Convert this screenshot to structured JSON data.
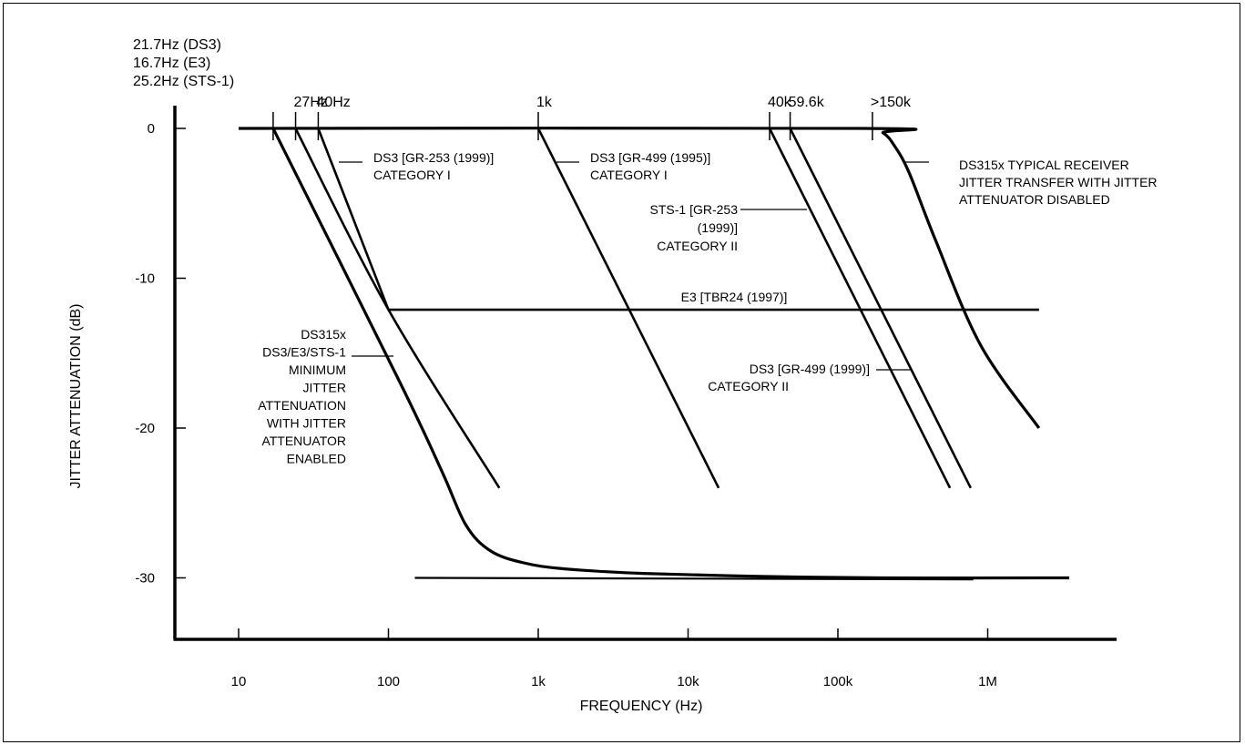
{
  "chart_data": {
    "type": "line",
    "title": "",
    "xlabel": "FREQUENCY (Hz)",
    "ylabel": "JITTER ATTENUATION (dB)",
    "x_scale": "log",
    "xlim": [
      5,
      6000000
    ],
    "ylim": [
      -34,
      2
    ],
    "x_ticks": [
      {
        "value": 10,
        "label": "10"
      },
      {
        "value": 100,
        "label": "100"
      },
      {
        "value": 1000,
        "label": "1k"
      },
      {
        "value": 10000,
        "label": "10k"
      },
      {
        "value": 100000,
        "label": "100k"
      },
      {
        "value": 1000000,
        "label": "1M"
      }
    ],
    "y_ticks": [
      {
        "value": 0,
        "label": "0"
      },
      {
        "value": -10,
        "label": "-10"
      },
      {
        "value": -20,
        "label": "-20"
      },
      {
        "value": -30,
        "label": "-30"
      }
    ],
    "grid": false,
    "series": [
      {
        "points": [
          [
            10,
            0
          ],
          [
            150000,
            0
          ],
          [
            200000,
            -0.3
          ],
          [
            240000,
            -1.2
          ],
          [
            300000,
            -3
          ],
          [
            450000,
            -7.5
          ],
          [
            900000,
            -14.5
          ],
          [
            2200000,
            -20
          ]
        ]
      },
      {
        "points": [
          [
            17,
            0
          ],
          [
            120,
            -17
          ],
          [
            230,
            -23
          ],
          [
            330,
            -26.5
          ],
          [
            480,
            -28.2
          ],
          [
            800,
            -29
          ],
          [
            1500,
            -29.4
          ],
          [
            5000,
            -29.7
          ],
          [
            30000,
            -29.9
          ],
          [
            200000,
            -30
          ],
          [
            3500000,
            -30
          ]
        ]
      },
      {
        "points": [
          [
            150,
            -30
          ],
          [
            800000,
            -30.1
          ]
        ]
      },
      {
        "points": [
          [
            24,
            0
          ],
          [
            100,
            -12.1
          ],
          [
            550,
            -24
          ]
        ]
      },
      {
        "points": [
          [
            34,
            0
          ],
          [
            100,
            -12.1
          ]
        ]
      },
      {
        "points": [
          [
            100,
            -12.1
          ],
          [
            2200000,
            -12.1
          ]
        ]
      },
      {
        "points": [
          [
            1000,
            0
          ],
          [
            16000,
            -24
          ]
        ]
      },
      {
        "points": [
          [
            35000,
            0
          ],
          [
            560000,
            -24
          ]
        ]
      },
      {
        "points": [
          [
            48000,
            0
          ],
          [
            770000,
            -24
          ]
        ]
      }
    ],
    "top_markers": [
      {
        "x": 17,
        "label": ""
      },
      {
        "x": 24,
        "label": "27Hz"
      },
      {
        "x": 34,
        "label": "40Hz"
      },
      {
        "x": 1000,
        "label": "1k"
      },
      {
        "x": 35000,
        "label": "40k"
      },
      {
        "x": 48000,
        "label": "59.6k"
      },
      {
        "x": 170000,
        "label": ">150k"
      }
    ],
    "corner_labels": [
      "21.7Hz (DS3)",
      "16.7Hz (E3)",
      "25.2Hz (STS-1)"
    ],
    "annotations": [
      {
        "lines": [
          "DS3  [GR-253  (1999)]",
          "CATEGORY I"
        ]
      },
      {
        "lines": [
          "DS3   [GR-499    (1995)]",
          "CATEGORY I"
        ]
      },
      {
        "lines": [
          "STS-1 [GR-253",
          "(1999)]",
          "CATEGORY II"
        ]
      },
      {
        "lines": [
          "E3 [TBR24 (1997)]"
        ]
      },
      {
        "lines": [
          "DS3 [GR-499 (1999)]",
          "CATEGORY II"
        ]
      },
      {
        "lines": [
          "DS315x TYPICAL RECEIVER",
          "JITTER TRANSFER WITH JITTER",
          "ATTENUATOR DISABLED"
        ]
      },
      {
        "lines": [
          "DS315x",
          "DS3/E3/STS-1",
          "MINIMUM",
          "JITTER",
          "ATTENUATION",
          "WITH JITTER",
          "ATTENUATOR",
          "ENABLED"
        ]
      }
    ]
  }
}
